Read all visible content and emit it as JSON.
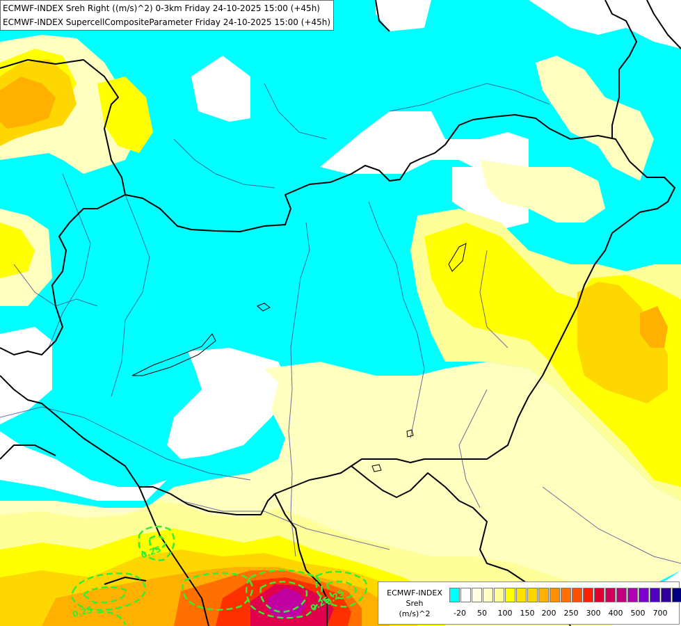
{
  "header": {
    "line1": "ECMWF-INDEX Sreh Right ((m/s)^2) 0-3km Friday 24-10-2025 15:00 (+45h)",
    "line2": "ECMWF-INDEX SupercellCompositeParameter Friday 24-10-2025 15:00 (+45h)"
  },
  "map": {
    "contour_labels": [
      "0.25",
      "0.25",
      "0.25",
      "0.25"
    ],
    "colors": {
      "cyan": "#00ffff",
      "white": "#ffffff",
      "pale_yellow": "#ffffc0",
      "light_yellow": "#ffff99",
      "yellow": "#ffff00",
      "gold": "#ffd700",
      "orange": "#ffb000",
      "dark_orange": "#ff8000",
      "red": "#ff3000",
      "crimson": "#e0004b",
      "magenta": "#c000a0",
      "border": "#000000",
      "river": "#3b3b8f",
      "scp_contour": "#33ee33"
    }
  },
  "legend": {
    "title_lines": [
      "ECMWF-INDEX",
      "Sreh",
      "(m/s)^2"
    ],
    "ticks": [
      "-20",
      "50",
      "100",
      "150",
      "200",
      "250",
      "300",
      "400",
      "500",
      "700"
    ],
    "swatches": [
      "#00ffff",
      "#ffffff",
      "#ffffe0",
      "#ffffc0",
      "#ffff99",
      "#ffff00",
      "#ffe000",
      "#ffd700",
      "#ffb000",
      "#ff9000",
      "#ff7000",
      "#ff5000",
      "#ff2000",
      "#e00030",
      "#d0005a",
      "#c00080",
      "#b000b0",
      "#8000d0",
      "#5000c0",
      "#3000a0",
      "#000080"
    ]
  }
}
